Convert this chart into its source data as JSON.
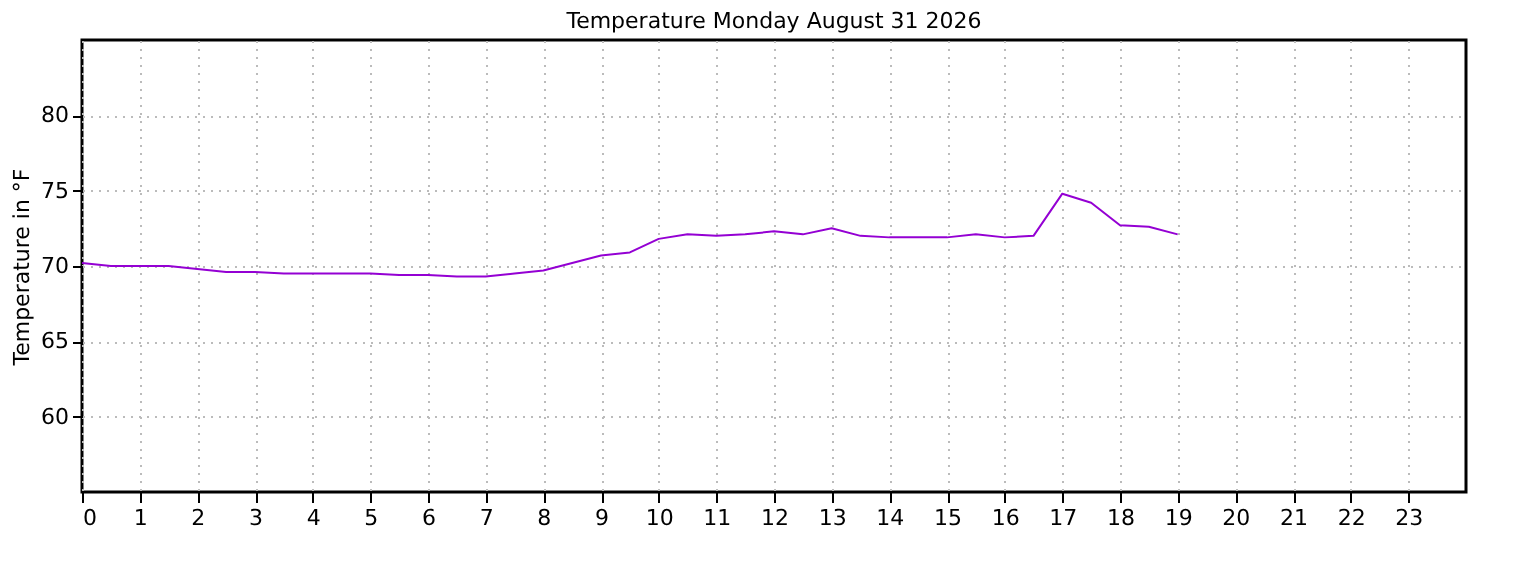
{
  "chart_data": {
    "type": "line",
    "title": "Temperature Monday August 31 2026",
    "ylabel": "Temperature in °F",
    "x": [
      0,
      0.5,
      1,
      1.5,
      2,
      2.5,
      3,
      3.5,
      4,
      4.5,
      5,
      5.5,
      6,
      6.5,
      7,
      7.5,
      8,
      8.5,
      9,
      9.5,
      10,
      10.5,
      11,
      11.5,
      12,
      12.5,
      13,
      13.5,
      14,
      14.5,
      15,
      15.5,
      16,
      16.5,
      17,
      17.5,
      18,
      18.5,
      19
    ],
    "series": [
      {
        "color": "#9400d3",
        "values": [
          70.2,
          70.0,
          70.0,
          70.0,
          69.8,
          69.6,
          69.6,
          69.5,
          69.5,
          69.5,
          69.5,
          69.4,
          69.4,
          69.3,
          69.3,
          69.5,
          69.7,
          70.2,
          70.7,
          70.9,
          71.8,
          72.1,
          72.0,
          72.1,
          72.3,
          72.1,
          72.5,
          72.0,
          71.9,
          71.9,
          71.9,
          72.1,
          71.9,
          72.0,
          74.8,
          74.2,
          72.7,
          72.6,
          72.1
        ]
      }
    ],
    "xlim": [
      0,
      24
    ],
    "xticks": [
      0,
      1,
      2,
      3,
      4,
      5,
      6,
      7,
      8,
      9,
      10,
      11,
      12,
      13,
      14,
      15,
      16,
      17,
      18,
      19,
      20,
      21,
      22,
      23
    ],
    "ylim": [
      55,
      85
    ],
    "yticks": [
      60,
      65,
      70,
      75,
      80
    ],
    "grid": true,
    "marker": "none",
    "line_style": "solid"
  }
}
